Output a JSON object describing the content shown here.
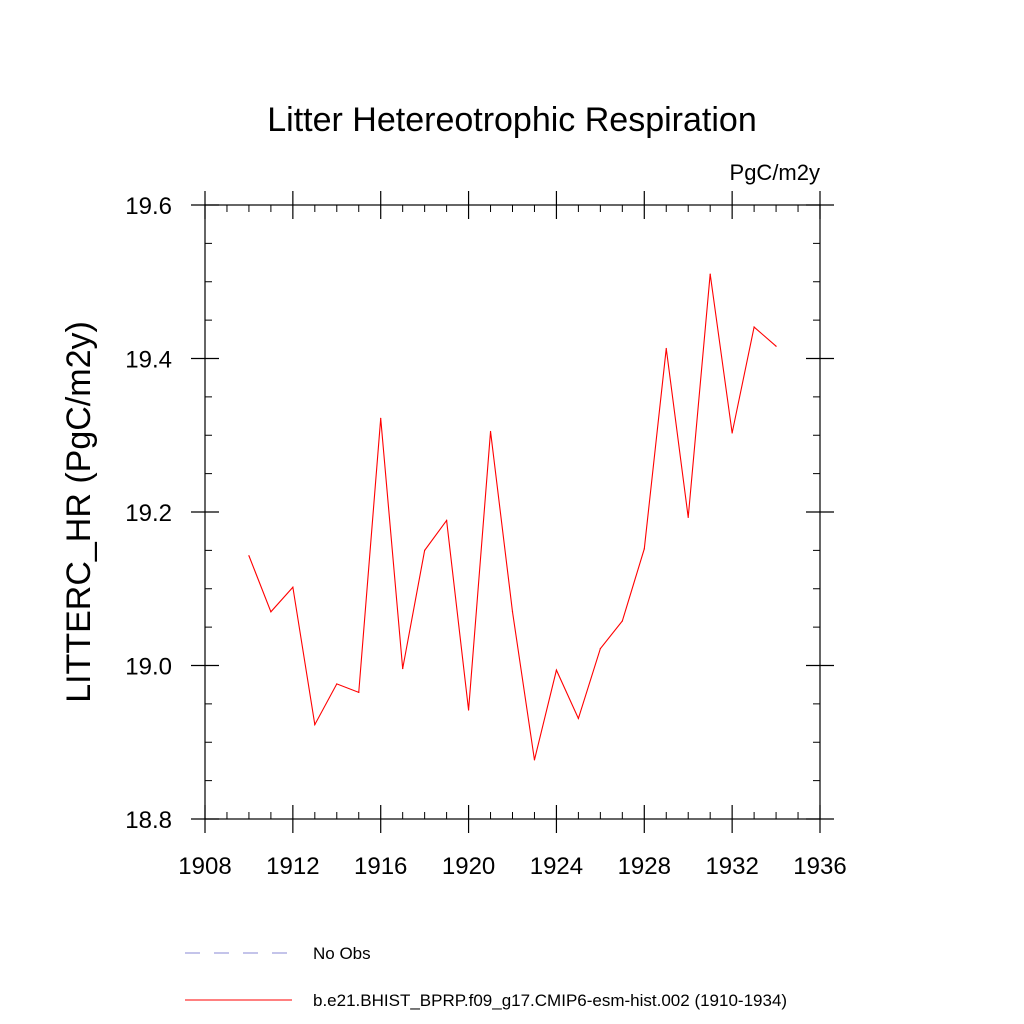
{
  "chart_data": {
    "type": "line",
    "title": "Litter Hetereotrophic Respiration",
    "units": "PgC/m2y",
    "xlabel": "",
    "ylabel": "LITTERC_HR  (PgC/m2y)",
    "xlim": [
      1908,
      1936
    ],
    "ylim": [
      18.8,
      19.6
    ],
    "xticks": [
      1908,
      1912,
      1916,
      1920,
      1924,
      1928,
      1932,
      1936
    ],
    "xtick_labels": [
      "1908",
      "1912",
      "1916",
      "1920",
      "1924",
      "1928",
      "1932",
      "1936"
    ],
    "yticks": [
      18.8,
      19.0,
      19.2,
      19.4,
      19.6
    ],
    "ytick_labels": [
      "18.8",
      "19.0",
      "19.2",
      "19.4",
      "19.6"
    ],
    "x_minor_step": 1,
    "y_minor_step": 0.05,
    "series": [
      {
        "name": "b.e21.BHIST_BPRP.f09_g17.CMIP6-esm-hist.002 (1910-1934)",
        "color": "#ff0000",
        "style": "solid",
        "x": [
          1910,
          1911,
          1912,
          1913,
          1914,
          1915,
          1916,
          1917,
          1918,
          1919,
          1920,
          1921,
          1922,
          1923,
          1924,
          1925,
          1926,
          1927,
          1928,
          1929,
          1930,
          1931,
          1932,
          1933,
          1934
        ],
        "y": [
          19.143,
          19.07,
          19.102,
          18.923,
          18.976,
          18.965,
          19.322,
          18.996,
          19.15,
          19.189,
          18.942,
          19.305,
          19.07,
          18.877,
          18.994,
          18.931,
          19.022,
          19.058,
          19.152,
          19.413,
          19.193,
          19.51,
          19.303,
          19.441,
          19.416
        ]
      }
    ],
    "legend": [
      {
        "label": "No Obs",
        "color": "#8a8ad6",
        "style": "dashed"
      },
      {
        "label": "b.e21.BHIST_BPRP.f09_g17.CMIP6-esm-hist.002 (1910-1934)",
        "color": "#ff0000",
        "style": "solid"
      }
    ]
  }
}
